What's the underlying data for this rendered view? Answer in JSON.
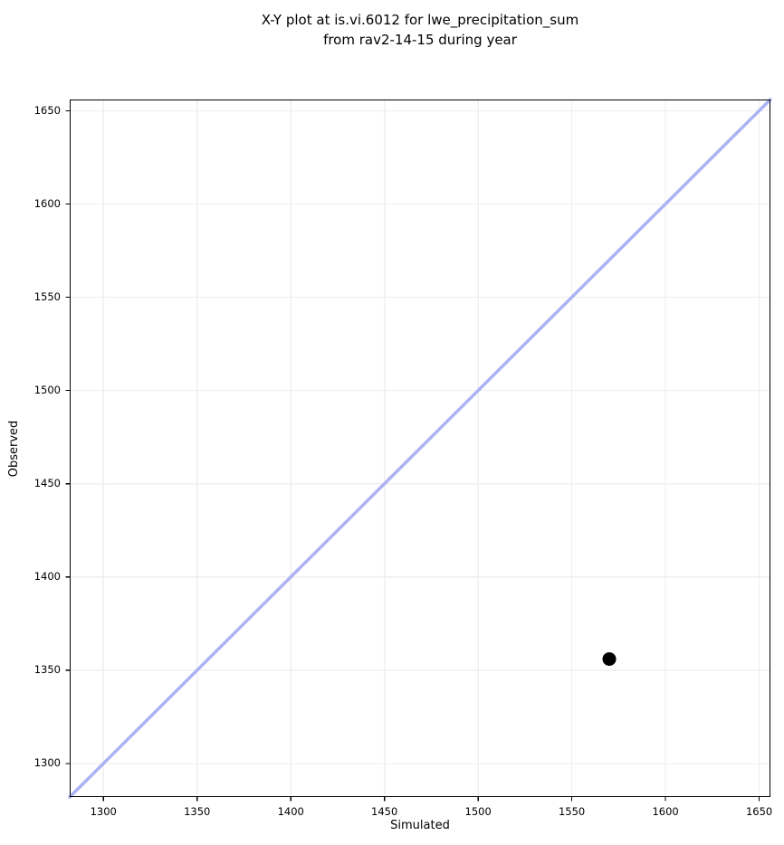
{
  "title": {
    "line1": "X-Y plot at is.vi.6012 for lwe_precipitation_sum",
    "line2": "from rav2-14-15 during year"
  },
  "chart_data": {
    "type": "scatter",
    "title": "X-Y plot at is.vi.6012 for lwe_precipitation_sum\nfrom rav2-14-15 during year",
    "xlabel": "Simulated",
    "ylabel": "Observed",
    "xlim": [
      1282,
      1656
    ],
    "ylim": [
      1282,
      1656
    ],
    "xticks": [
      1300,
      1350,
      1400,
      1450,
      1500,
      1550,
      1600,
      1650
    ],
    "yticks": [
      1300,
      1350,
      1400,
      1450,
      1500,
      1550,
      1600,
      1650
    ],
    "grid": true,
    "legend": false,
    "series": [
      {
        "name": "identity_line",
        "type": "line",
        "x": [
          1282,
          1656
        ],
        "y": [
          1282,
          1656
        ],
        "color": "#acb2f3",
        "line_width": 3.5
      },
      {
        "name": "data_points",
        "type": "scatter",
        "points": [
          {
            "x": 1570,
            "y": 1356
          }
        ],
        "color": "#000000",
        "marker": "circle",
        "marker_radius": 7.5
      }
    ],
    "colors": {
      "background": "#ffffff",
      "grid": "#efefef",
      "spine": "#000000",
      "text": "#000000"
    }
  }
}
